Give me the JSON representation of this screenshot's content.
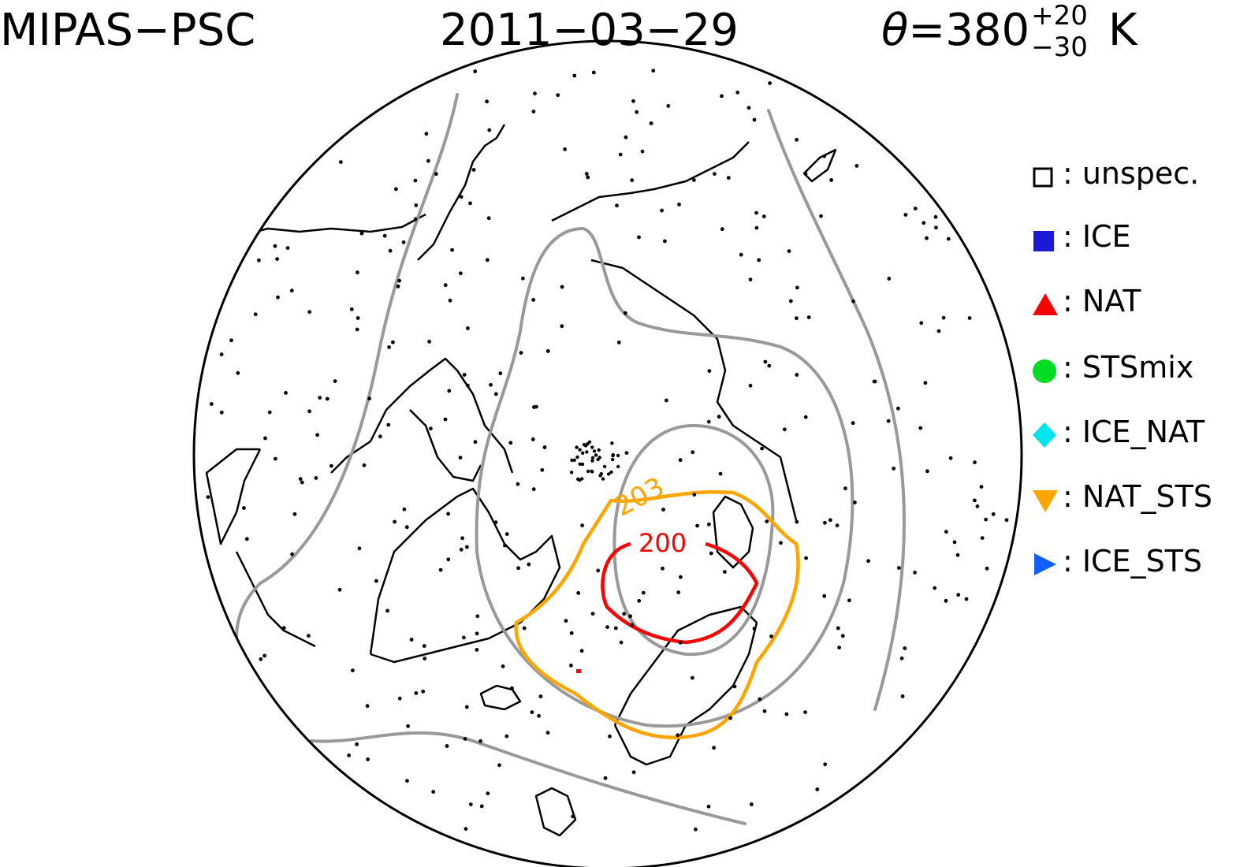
{
  "header": {
    "instrument": "MIPAS−PSC",
    "date": "2011−03−29",
    "theta_symbol": "θ",
    "theta_eq": "=380",
    "theta_plus": "+20",
    "theta_minus": "−30",
    "theta_unit": "K"
  },
  "legend": {
    "items": [
      {
        "label": "unspec.",
        "symbol": "open-square-icon",
        "color": "#000000"
      },
      {
        "label": "ICE",
        "symbol": "filled-square-icon",
        "color": "#1a1ad6"
      },
      {
        "label": "NAT",
        "symbol": "triangle-up-icon",
        "color": "#ff0000"
      },
      {
        "label": "STSmix",
        "symbol": "circle-icon",
        "color": "#00dd22"
      },
      {
        "label": "ICE_NAT",
        "symbol": "diamond-icon",
        "color": "#00e5ee"
      },
      {
        "label": "NAT_STS",
        "symbol": "triangle-down-icon",
        "color": "#ffa500"
      },
      {
        "label": "ICE_STS",
        "symbol": "triangle-right-icon",
        "color": "#1060ff"
      }
    ]
  },
  "contours": {
    "labels": [
      {
        "value": "203",
        "color": "#ffa500"
      },
      {
        "value": "200",
        "color": "#ff0000"
      }
    ],
    "grey_color": "#999999",
    "orange_color": "#ffa500",
    "red_color": "#ff0000"
  }
}
